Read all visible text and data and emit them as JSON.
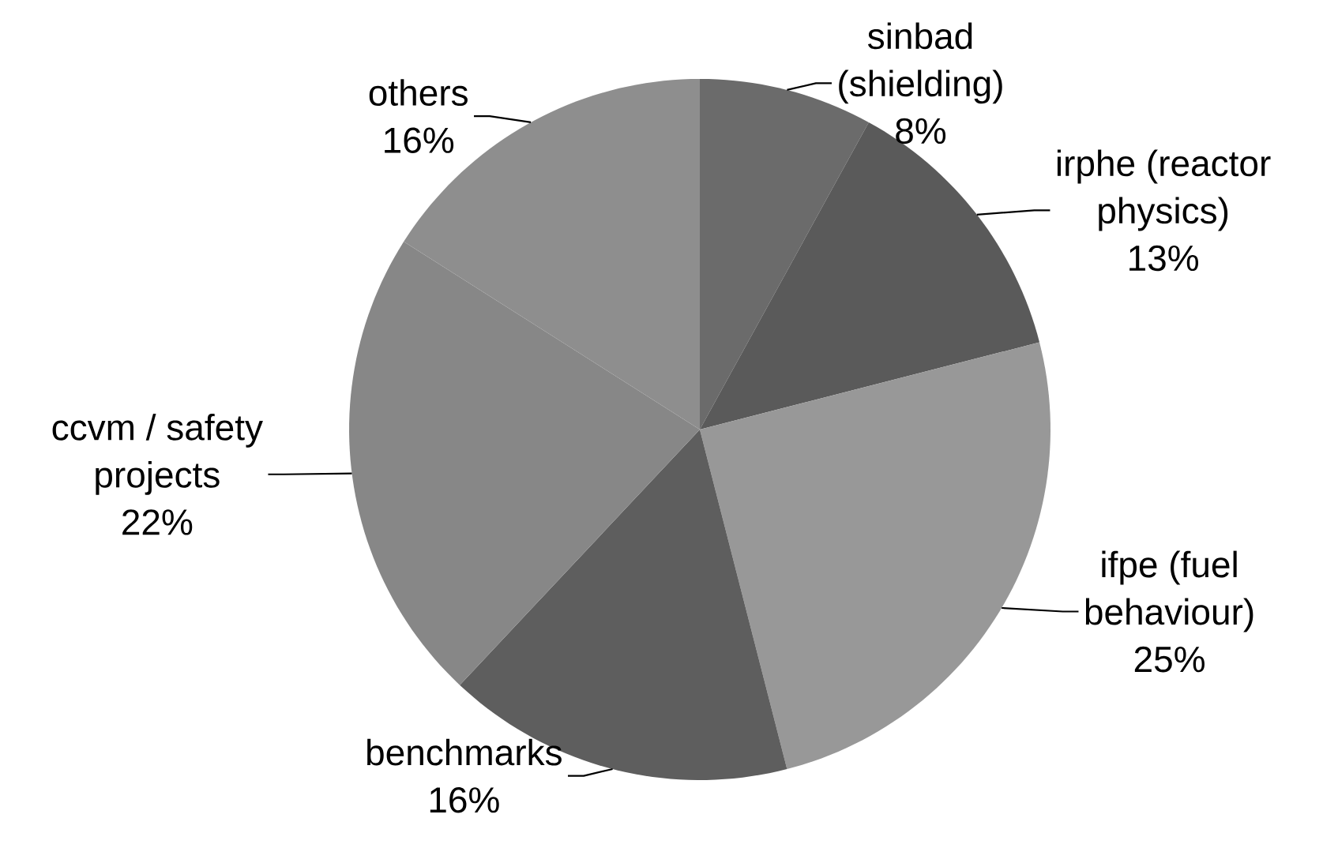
{
  "chart_data": {
    "type": "pie",
    "categories": [
      "sinbad (shielding)",
      "irphe (reactor physics)",
      "ifpe (fuel behaviour)",
      "benchmarks",
      "ccvm / safety projects",
      "others"
    ],
    "values": [
      8,
      13,
      25,
      16,
      22,
      16
    ],
    "value_labels": [
      "8%",
      "13%",
      "25%",
      "16%",
      "22%",
      "16%"
    ],
    "colors": [
      "#6b6b6b",
      "#5a5a5a",
      "#989898",
      "#5e5e5e",
      "#878787",
      "#8e8e8e"
    ]
  }
}
